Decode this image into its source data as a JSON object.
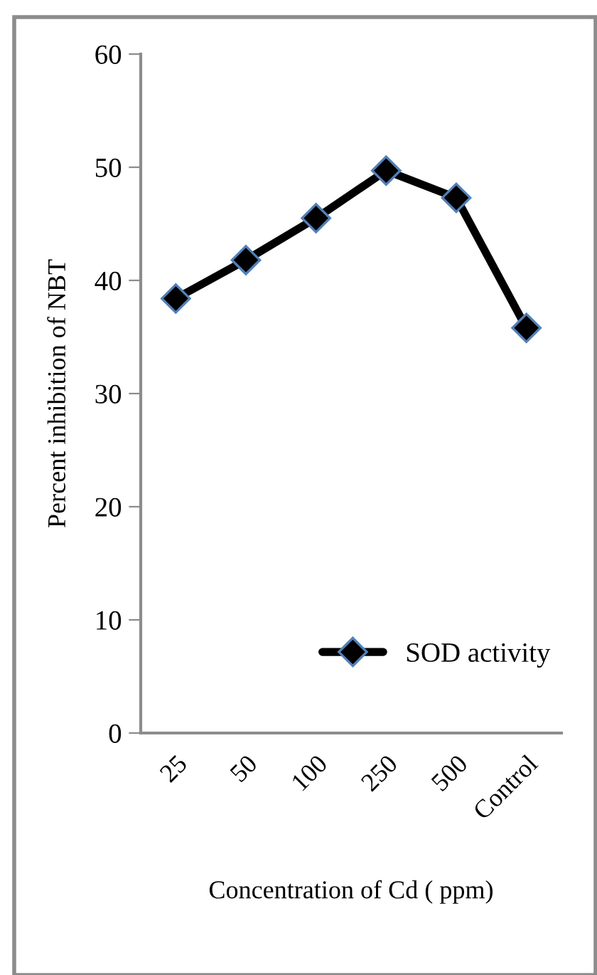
{
  "chart_data": {
    "type": "line",
    "xlabel": "Concentration of Cd ( ppm)",
    "ylabel": "Percent inhibition of NBT",
    "categories": [
      "25",
      "50",
      "100",
      "250",
      "500",
      "Control"
    ],
    "series": [
      {
        "name": "SOD activity",
        "color": "#000000",
        "values": [
          38.4,
          41.8,
          45.5,
          49.7,
          47.3,
          35.8
        ]
      }
    ],
    "ylim": [
      0,
      60
    ],
    "yticks": [
      0,
      10,
      20,
      30,
      40,
      50,
      60
    ],
    "grid": false,
    "legend": "bottom right",
    "marker": "diamond",
    "line_style": "solid"
  }
}
